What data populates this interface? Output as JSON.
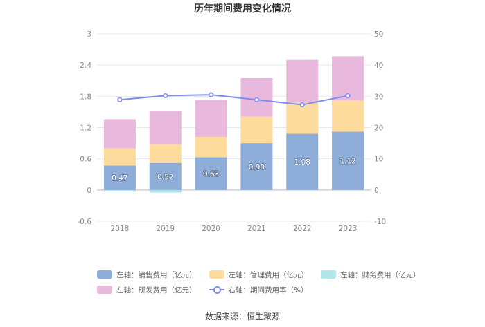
{
  "chart_data": {
    "type": "bar",
    "title": "历年期间费用变化情况",
    "categories": [
      "2018",
      "2019",
      "2020",
      "2021",
      "2022",
      "2023"
    ],
    "left_axis": {
      "ylim": [
        -0.6,
        3
      ],
      "ticks": [
        "-0.6",
        "0",
        "0.6",
        "1.2",
        "1.8",
        "2.4",
        "3"
      ],
      "tick_values": [
        -0.6,
        0,
        0.6,
        1.2,
        1.8,
        2.4,
        3
      ]
    },
    "right_axis": {
      "ylim": [
        -10,
        50
      ],
      "ticks": [
        "-10",
        "0",
        "10",
        "20",
        "30",
        "40",
        "50"
      ],
      "tick_values": [
        -10,
        0,
        10,
        20,
        30,
        40,
        50
      ]
    },
    "series": [
      {
        "name": "左轴：销售费用（亿元）",
        "axis": "left",
        "color": "#8eadd9",
        "values": [
          0.47,
          0.52,
          0.63,
          0.9,
          1.08,
          1.12
        ],
        "labels": [
          "0.47",
          "0.52",
          "0.63",
          "0.90",
          "1.08",
          "1.12"
        ]
      },
      {
        "name": "左轴：管理费用（亿元）",
        "axis": "left",
        "color": "#fddb9c",
        "values": [
          0.33,
          0.36,
          0.39,
          0.51,
          0.6,
          0.6
        ]
      },
      {
        "name": "左轴：财务费用（亿元）",
        "axis": "left",
        "color": "#b1e6ea",
        "values": [
          -0.03,
          -0.05,
          0.0,
          0.0,
          0.0,
          0.0
        ]
      },
      {
        "name": "左轴：研发费用（亿元）",
        "axis": "left",
        "color": "#e8b9dc",
        "values": [
          0.56,
          0.64,
          0.71,
          0.74,
          0.82,
          0.85
        ]
      },
      {
        "name": "右轴：期间费用率（%）",
        "axis": "right",
        "type": "line",
        "color": "#7e8ded",
        "values": [
          28.9,
          30.2,
          30.5,
          28.9,
          27.3,
          30.2
        ]
      }
    ],
    "source": "数据来源：恒生聚源"
  },
  "legend": {
    "row1": [
      {
        "label": "左轴：销售费用（亿元）",
        "color": "#8eadd9"
      },
      {
        "label": "左轴：管理费用（亿元）",
        "color": "#fddb9c"
      },
      {
        "label": "左轴：财务费用（亿元）",
        "color": "#b1e6ea"
      }
    ],
    "row2_bar": {
      "label": "左轴：研发费用（亿元）",
      "color": "#e8b9dc"
    },
    "row2_line": {
      "label": "右轴：期间费用率（%）",
      "color": "#7e8ded"
    }
  }
}
